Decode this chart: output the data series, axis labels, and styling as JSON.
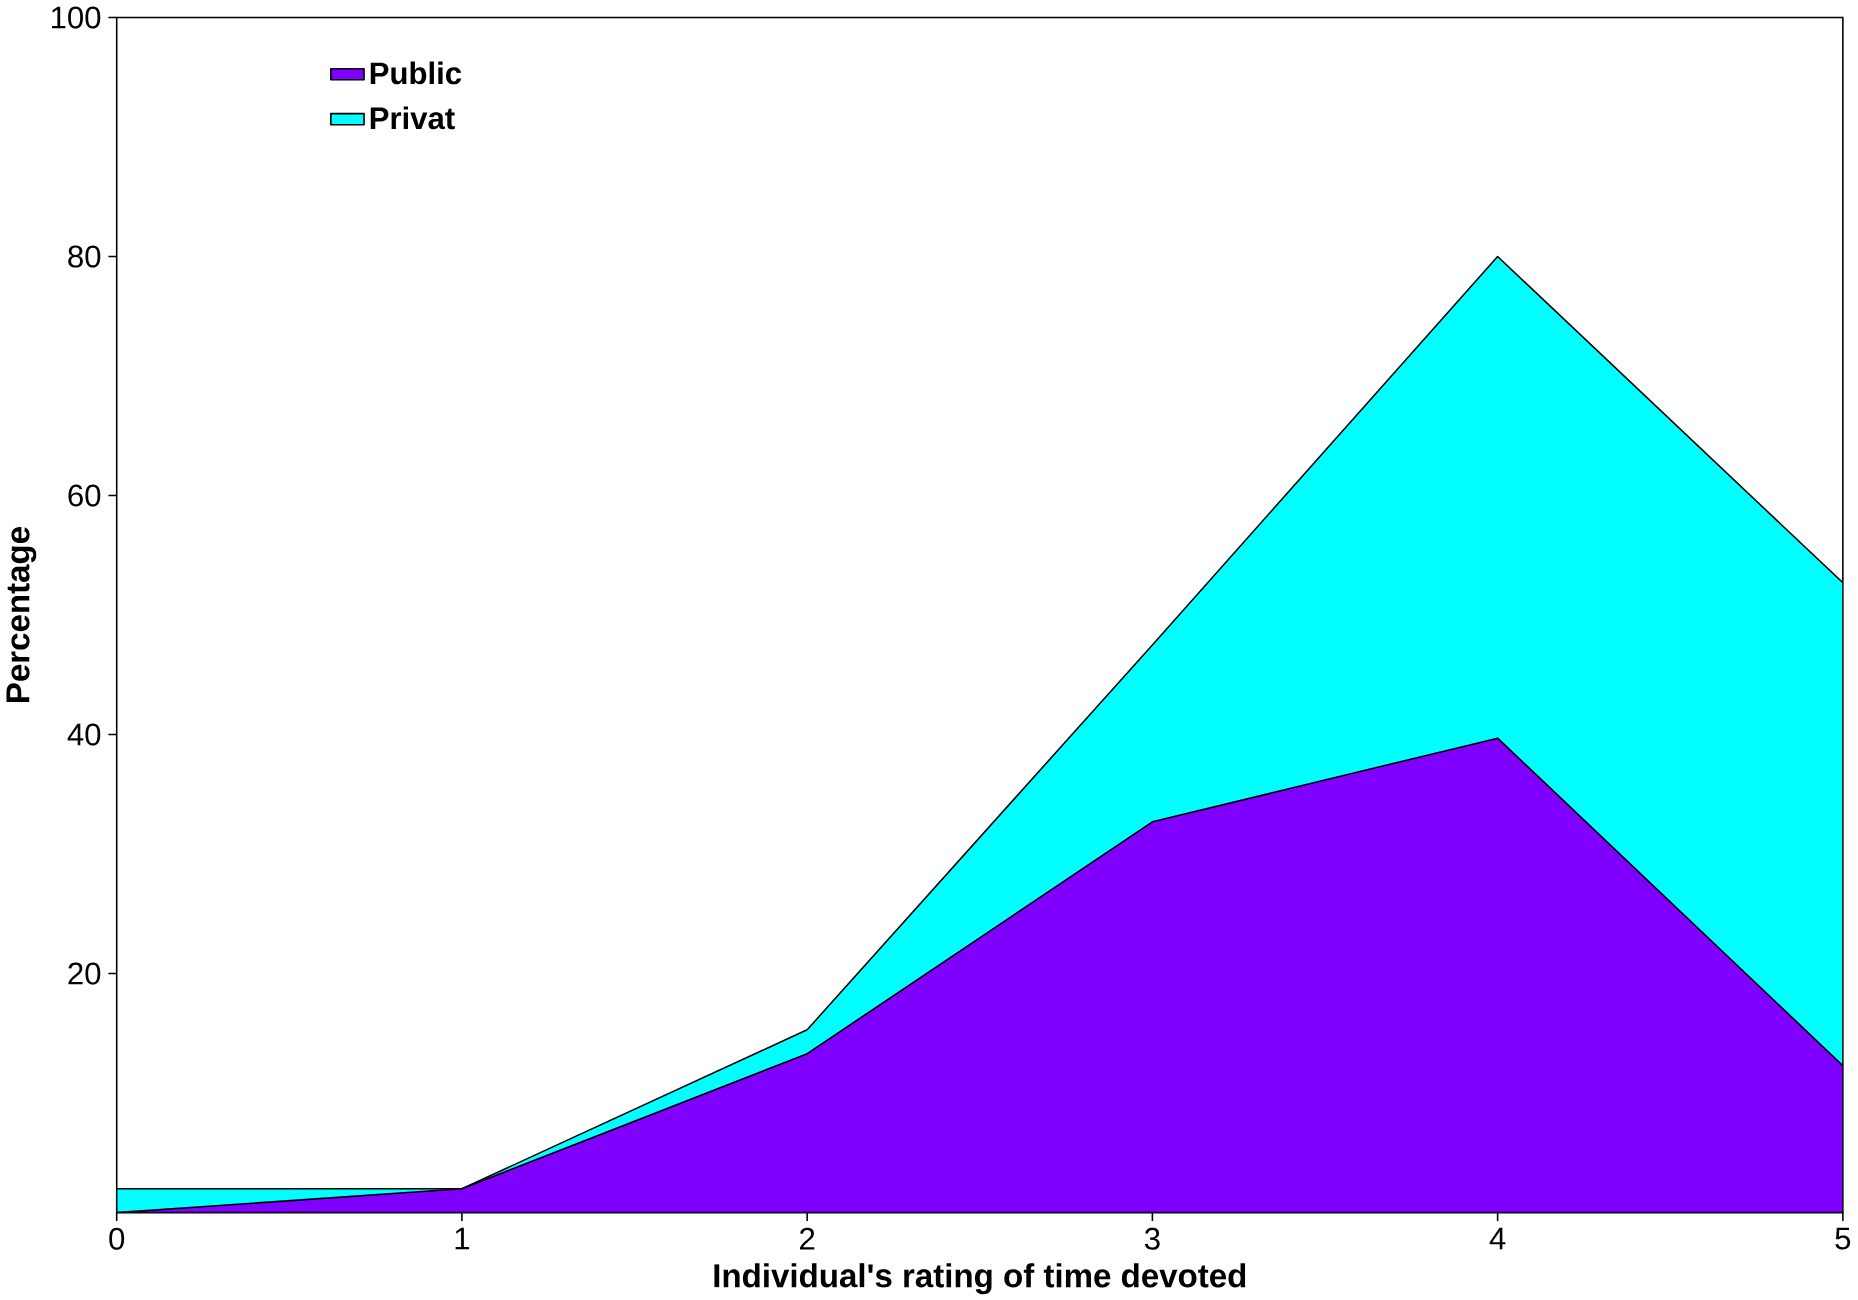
{
  "chart_data": {
    "type": "area",
    "xlabel": "Individual's rating of time devoted",
    "ylabel": "Percentage",
    "x": [
      0,
      1,
      2,
      3,
      4,
      5
    ],
    "series": [
      {
        "name": "Public",
        "color": "#7f00ff",
        "values": [
          0,
          2,
          13.3,
          32.7,
          39.7,
          12.3
        ]
      },
      {
        "name": "Privat",
        "color": "#00ffff",
        "values": [
          2,
          2,
          15.3,
          47.5,
          80,
          52.7
        ]
      }
    ],
    "xlim": [
      0,
      5
    ],
    "ylim": [
      0,
      100
    ],
    "xticks": [
      0,
      1,
      2,
      3,
      4,
      5
    ],
    "yticks": [
      20,
      40,
      60,
      80,
      100
    ],
    "legend": "top left",
    "grid": false
  }
}
